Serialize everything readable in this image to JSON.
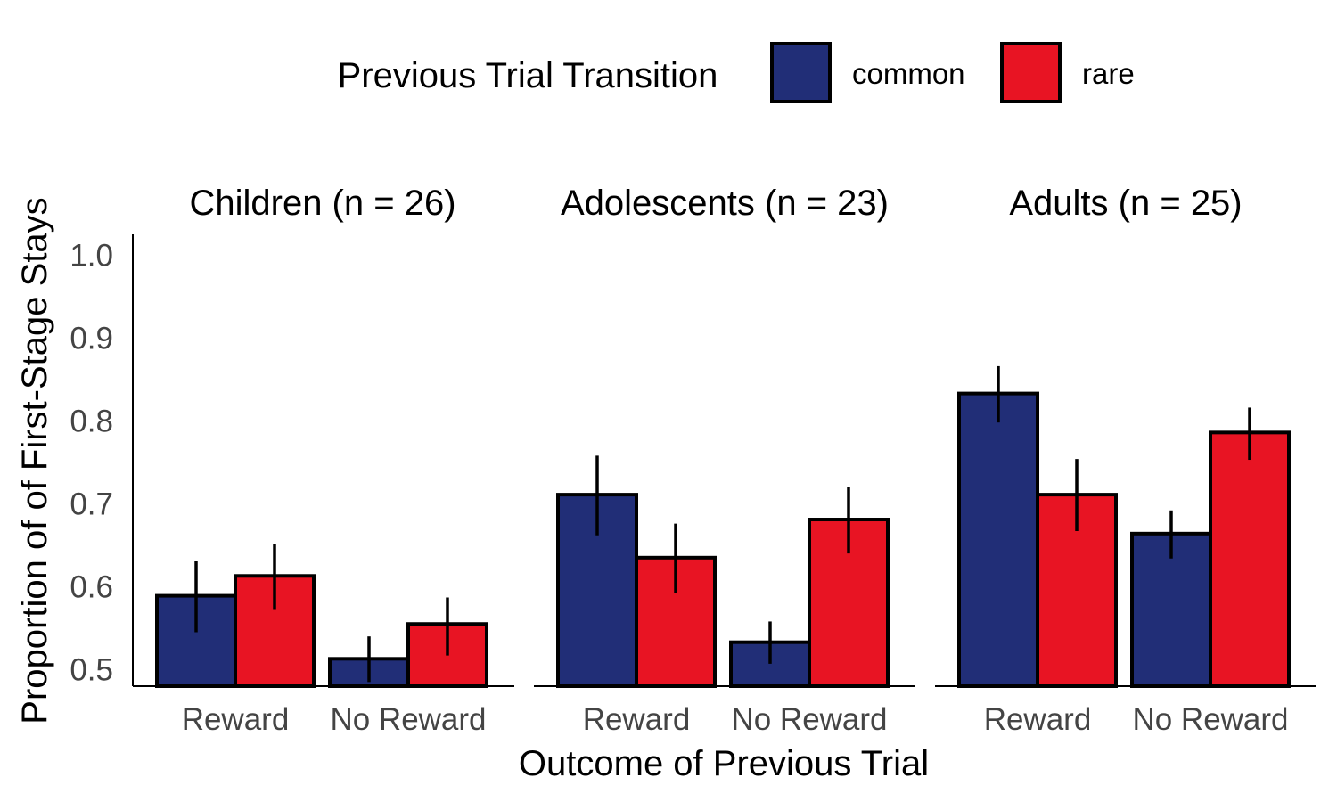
{
  "chart_data": {
    "type": "bar",
    "legend": {
      "title": "Previous Trial Transition",
      "position": "top",
      "entries": [
        {
          "name": "common",
          "color": "#212e77"
        },
        {
          "name": "rare",
          "color": "#e81423"
        }
      ]
    },
    "xlabel": "Outcome of Previous Trial",
    "ylabel": "Proportion of of First-Stage Stays",
    "ylim": [
      0.48,
      1.025
    ],
    "yticks": [
      "0.5",
      "0.6",
      "0.7",
      "0.8",
      "0.9",
      "1.0"
    ],
    "ytick_values": [
      0.5,
      0.6,
      0.7,
      0.8,
      0.9,
      1.0
    ],
    "categories": [
      "Reward",
      "No Reward"
    ],
    "grid": false,
    "panels": [
      {
        "title": "Children (n = 26)",
        "series": [
          {
            "name": "common",
            "values": [
              0.589,
              0.513
            ],
            "err_low": [
              0.545,
              0.485
            ],
            "err_high": [
              0.631,
              0.54
            ]
          },
          {
            "name": "rare",
            "values": [
              0.613,
              0.555
            ],
            "err_low": [
              0.573,
              0.517
            ],
            "err_high": [
              0.651,
              0.587
            ]
          }
        ]
      },
      {
        "title": "Adolescents (n = 23)",
        "series": [
          {
            "name": "common",
            "values": [
              0.711,
              0.533
            ],
            "err_low": [
              0.662,
              0.507
            ],
            "err_high": [
              0.758,
              0.558
            ]
          },
          {
            "name": "rare",
            "values": [
              0.635,
              0.681
            ],
            "err_low": [
              0.592,
              0.64
            ],
            "err_high": [
              0.676,
              0.72
            ]
          }
        ]
      },
      {
        "title": "Adults (n = 25)",
        "series": [
          {
            "name": "common",
            "values": [
              0.833,
              0.664
            ],
            "err_low": [
              0.798,
              0.634
            ],
            "err_high": [
              0.866,
              0.692
            ]
          },
          {
            "name": "rare",
            "values": [
              0.711,
              0.786
            ],
            "err_low": [
              0.667,
              0.753
            ],
            "err_high": [
              0.754,
              0.816
            ]
          }
        ]
      }
    ]
  }
}
